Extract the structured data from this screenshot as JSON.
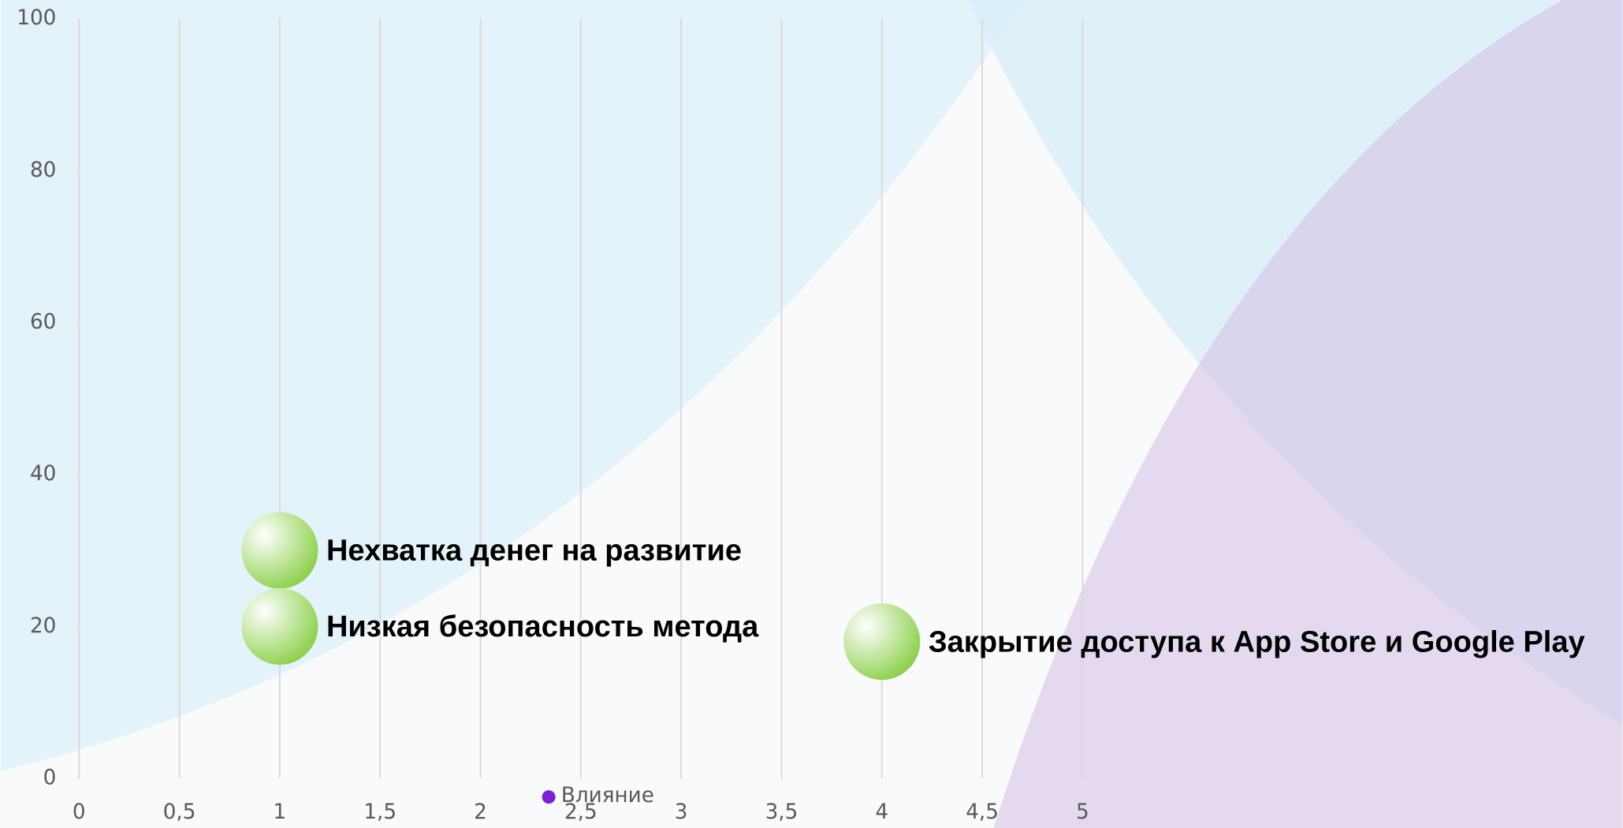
{
  "chart_data": {
    "type": "bubble",
    "x": [
      1,
      1,
      4
    ],
    "series": [
      {
        "name": "Влияние",
        "color": "#7b22d6",
        "marker_color": "#8fd14f",
        "values": [
          30,
          20,
          18
        ],
        "labels": [
          "Нехватка денег на развитие",
          "Низкая безопасность метода",
          "Закрытие доступа к App Store и Google Play"
        ]
      }
    ],
    "xlim": [
      0,
      5
    ],
    "xticks": [
      0,
      {
        "value": 0.5,
        "label": "0,5"
      },
      1,
      {
        "value": 1.5,
        "label": "1,5"
      },
      2,
      {
        "value": 2.5,
        "label": "2,5"
      },
      3,
      {
        "value": 3.5,
        "label": "3,5"
      },
      4,
      {
        "value": 4.5,
        "label": "4,5"
      },
      5
    ],
    "ylim": [
      0,
      100
    ],
    "yticks": [
      0,
      20,
      40,
      60,
      80,
      100
    ],
    "grid": true,
    "legend": "bottom"
  }
}
